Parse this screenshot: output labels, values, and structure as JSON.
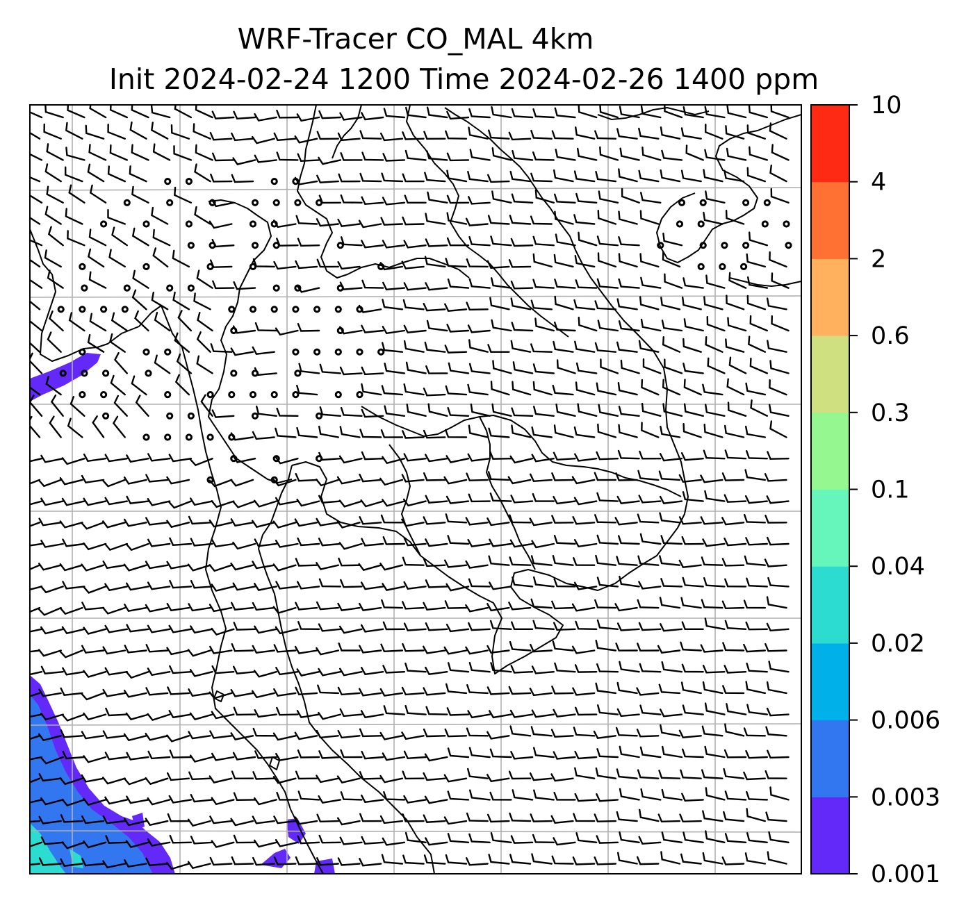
{
  "title": {
    "line1": "WRF-Tracer CO_MAL 4km",
    "line2": "Init 2024-02-24 1200 Time 2024-02-26 1400 ppm"
  },
  "colorbar": {
    "levels": [
      "0.001",
      "0.003",
      "0.006",
      "0.02",
      "0.04",
      "0.1",
      "0.3",
      "0.6",
      "2",
      "4",
      "10"
    ],
    "colors": [
      "#6229f8",
      "#3377f0",
      "#00b0e8",
      "#2cdcd0",
      "#66f5bb",
      "#95f790",
      "#cfe080",
      "#ffb15e",
      "#ff7133",
      "#ff2a14"
    ]
  },
  "map": {
    "tracer_color_low": "#6229f8",
    "tracer_color_mid": "#3377f0",
    "tracer_color_cyan": "#2cdcd0",
    "gridline_color": "#b0b0b0",
    "wind_barb_color": "#000000",
    "coastline_color": "#000000"
  }
}
